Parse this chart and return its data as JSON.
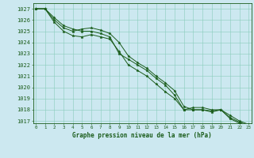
{
  "title": "Graphe pression niveau de la mer (hPa)",
  "bg_color": "#cce8f0",
  "grid_color": "#88ccbb",
  "line_color": "#1a5c1a",
  "xlim": [
    -0.3,
    23.3
  ],
  "ylim": [
    1016.8,
    1027.5
  ],
  "yticks": [
    1017,
    1018,
    1019,
    1020,
    1021,
    1022,
    1023,
    1024,
    1025,
    1026,
    1027
  ],
  "xticks": [
    0,
    1,
    2,
    3,
    4,
    5,
    6,
    7,
    8,
    9,
    10,
    11,
    12,
    13,
    14,
    15,
    16,
    17,
    18,
    19,
    20,
    21,
    22,
    23
  ],
  "series": [
    [
      1027.0,
      1027.0,
      1026.2,
      1025.5,
      1025.2,
      1025.0,
      1025.0,
      1024.8,
      1024.5,
      1023.0,
      1022.5,
      1022.0,
      1021.5,
      1020.8,
      1020.2,
      1019.3,
      1018.0,
      1018.0,
      1018.0,
      1017.8,
      1018.0,
      1017.2,
      1016.8,
      1016.5
    ],
    [
      1027.0,
      1027.0,
      1026.0,
      1025.3,
      1025.0,
      1025.2,
      1025.3,
      1025.1,
      1024.8,
      1024.0,
      1022.8,
      1022.2,
      1021.7,
      1021.0,
      1020.4,
      1019.7,
      1018.3,
      1018.0,
      1018.0,
      1017.9,
      1018.0,
      1017.3,
      1016.9,
      1016.6
    ],
    [
      1027.0,
      1027.0,
      1025.8,
      1025.0,
      1024.6,
      1024.5,
      1024.7,
      1024.5,
      1024.3,
      1023.2,
      1022.0,
      1021.5,
      1021.0,
      1020.3,
      1019.6,
      1019.0,
      1018.0,
      1018.2,
      1018.2,
      1018.0,
      1018.0,
      1017.5,
      1017.0,
      1016.7
    ]
  ],
  "ylabel_fontsize": 5.0,
  "xlabel_fontsize": 5.5,
  "tick_fontsize": 4.2
}
